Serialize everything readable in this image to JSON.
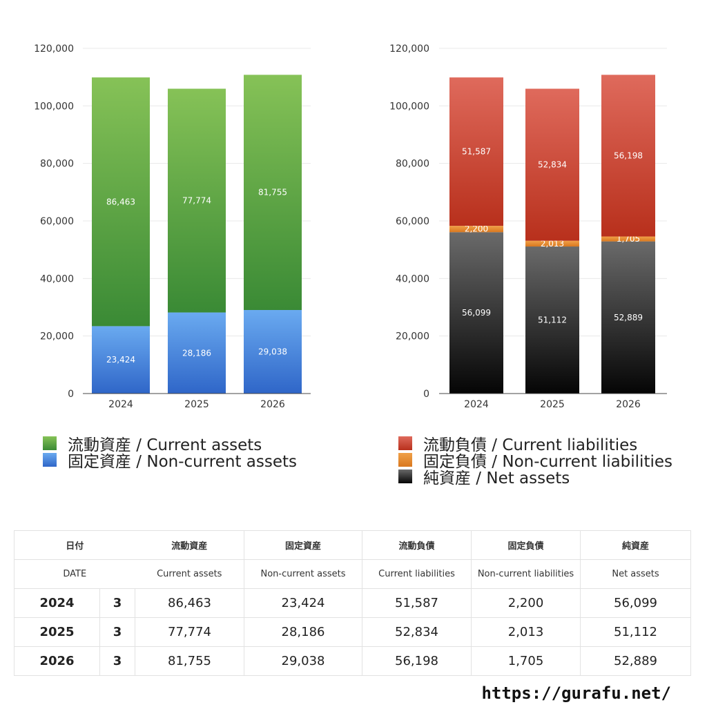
{
  "chart_data": [
    {
      "type": "bar",
      "stacked": true,
      "categories": [
        "2024",
        "2025",
        "2026"
      ],
      "series": [
        {
          "name": "固定資産 / Non-current assets",
          "values": [
            23424,
            28186,
            29038
          ],
          "color": "#3d7fd9"
        },
        {
          "name": "流動資産 / Current assets",
          "values": [
            86463,
            77774,
            81755
          ],
          "color": "#4e9e3d"
        }
      ],
      "data_labels": [
        [
          "23,424",
          "28,186",
          "29,038"
        ],
        [
          "86,463",
          "77,774",
          "81,755"
        ]
      ],
      "y_ticks": [
        "0",
        "20,000",
        "40,000",
        "60,000",
        "80,000",
        "100,000",
        "120,000"
      ],
      "ylim": [
        0,
        120000
      ],
      "grid": true,
      "legend": "bottom"
    },
    {
      "type": "bar",
      "stacked": true,
      "categories": [
        "2024",
        "2025",
        "2026"
      ],
      "series": [
        {
          "name": "純資産 / Net assets",
          "values": [
            56099,
            51112,
            52889
          ],
          "color": "#222222"
        },
        {
          "name": "固定負債 / Non-current liabilities",
          "values": [
            2200,
            2013,
            1705
          ],
          "color": "#e8882e"
        },
        {
          "name": "流動負債 / Current liabilities",
          "values": [
            51587,
            52834,
            56198
          ],
          "color": "#cc4433"
        }
      ],
      "data_labels": [
        [
          "56,099",
          "51,112",
          "52,889"
        ],
        [
          "2,200",
          "2,013",
          "1,705"
        ],
        [
          "51,587",
          "52,834",
          "56,198"
        ]
      ],
      "y_ticks": [
        "0",
        "20,000",
        "40,000",
        "60,000",
        "80,000",
        "100,000",
        "120,000"
      ],
      "ylim": [
        0,
        120000
      ],
      "grid": true,
      "legend": "bottom"
    }
  ],
  "legend_left": [
    {
      "label": "流動資産 / Current assets",
      "color": "#4e9e3d"
    },
    {
      "label": "固定資産 / Non-current assets",
      "color": "#3d7fd9"
    }
  ],
  "legend_right": [
    {
      "label": "流動負債 / Current liabilities",
      "color": "#cc4433"
    },
    {
      "label": "固定負債 / Non-current liabilities",
      "color": "#e8882e"
    },
    {
      "label": "純資産 / Net assets",
      "color": "#222222"
    }
  ],
  "table": {
    "header_jp": [
      "日付",
      "流動資産",
      "固定資産",
      "流動負債",
      "固定負債",
      "純資産"
    ],
    "header_en": [
      "DATE",
      "Current assets",
      "Non-current assets",
      "Current liabilities",
      "Non-current liabilities",
      "Net assets"
    ],
    "rows": [
      {
        "year": "2024",
        "month": "3",
        "values": [
          "86,463",
          "23,424",
          "51,587",
          "2,200",
          "56,099"
        ]
      },
      {
        "year": "2025",
        "month": "3",
        "values": [
          "77,774",
          "28,186",
          "52,834",
          "2,013",
          "51,112"
        ]
      },
      {
        "year": "2026",
        "month": "3",
        "values": [
          "81,755",
          "29,038",
          "56,198",
          "1,705",
          "52,889"
        ]
      }
    ]
  },
  "site": "https://gurafu.net/"
}
